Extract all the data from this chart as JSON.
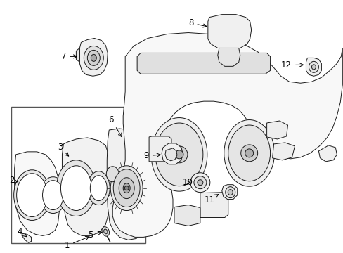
{
  "bg_color": "#ffffff",
  "line_color": "#1a1a1a",
  "label_color": "#000000",
  "figsize": [
    4.89,
    3.6
  ],
  "dpi": 100,
  "lw": 0.7,
  "fc": "#f2f2f2",
  "white": "#ffffff"
}
